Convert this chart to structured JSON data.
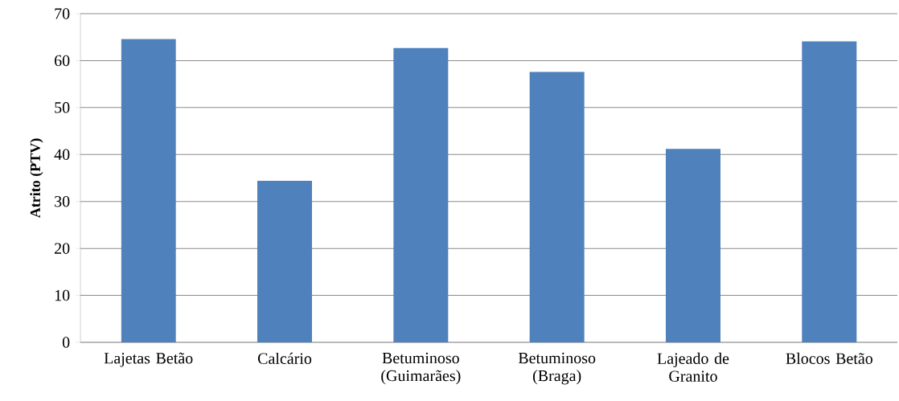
{
  "chart_data": {
    "type": "bar",
    "ylabel": "Atrito (PTV)",
    "categories": [
      "Lajetas Betão",
      "Calcário",
      "Betuminoso (Guimarães)",
      "Betuminoso (Braga)",
      "Lajeado de Granito",
      "Blocos Betão"
    ],
    "values": [
      64.6,
      34.4,
      62.7,
      57.6,
      41.2,
      64.1
    ],
    "color": "#4f81bd",
    "ylim": [
      0,
      70
    ],
    "yticks": [
      0,
      10,
      20,
      30,
      40,
      50,
      60,
      70
    ],
    "grid": "y"
  }
}
